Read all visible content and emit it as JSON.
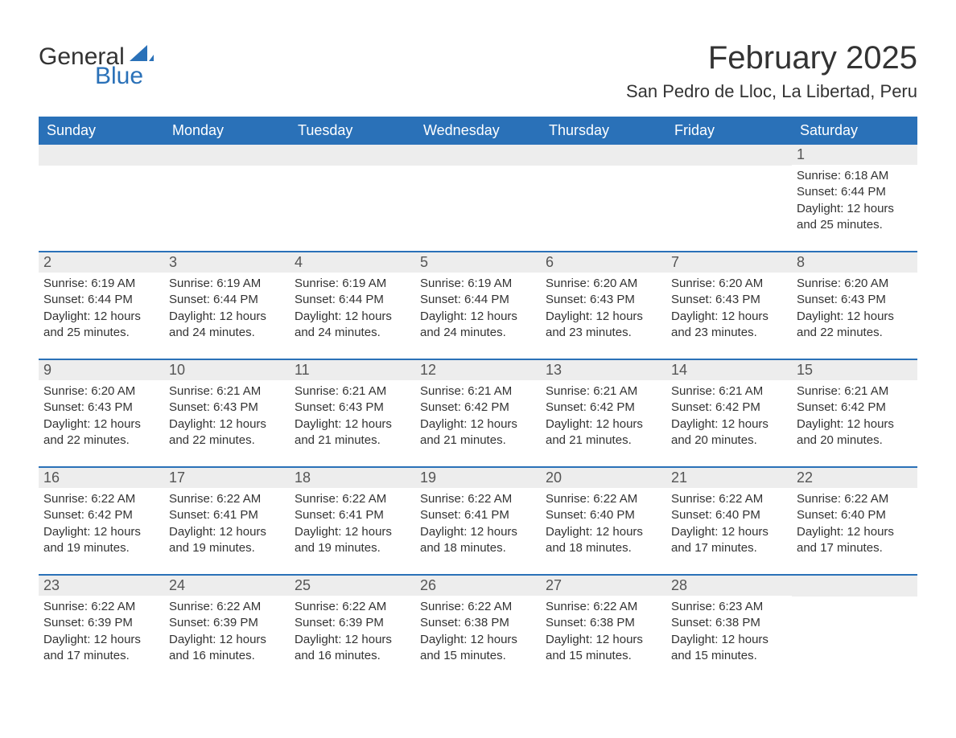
{
  "logo": {
    "word1": "General",
    "word2": "Blue"
  },
  "title": "February 2025",
  "location": "San Pedro de Lloc, La Libertad, Peru",
  "colors": {
    "header_bg": "#2a71b8",
    "header_text": "#ffffff",
    "daynum_bg": "#ededed",
    "daynum_text": "#555555",
    "body_text": "#333333",
    "page_bg": "#ffffff",
    "rule": "#2a71b8",
    "logo_blue": "#2a71b8"
  },
  "fonts": {
    "title_size_pt": 30,
    "location_size_pt": 16,
    "dow_size_pt": 14,
    "daynum_size_pt": 14,
    "body_size_pt": 11
  },
  "days_of_week": [
    "Sunday",
    "Monday",
    "Tuesday",
    "Wednesday",
    "Thursday",
    "Friday",
    "Saturday"
  ],
  "weeks": [
    [
      null,
      null,
      null,
      null,
      null,
      null,
      {
        "n": "1",
        "sunrise": "Sunrise: 6:18 AM",
        "sunset": "Sunset: 6:44 PM",
        "daylight": "Daylight: 12 hours and 25 minutes."
      }
    ],
    [
      {
        "n": "2",
        "sunrise": "Sunrise: 6:19 AM",
        "sunset": "Sunset: 6:44 PM",
        "daylight": "Daylight: 12 hours and 25 minutes."
      },
      {
        "n": "3",
        "sunrise": "Sunrise: 6:19 AM",
        "sunset": "Sunset: 6:44 PM",
        "daylight": "Daylight: 12 hours and 24 minutes."
      },
      {
        "n": "4",
        "sunrise": "Sunrise: 6:19 AM",
        "sunset": "Sunset: 6:44 PM",
        "daylight": "Daylight: 12 hours and 24 minutes."
      },
      {
        "n": "5",
        "sunrise": "Sunrise: 6:19 AM",
        "sunset": "Sunset: 6:44 PM",
        "daylight": "Daylight: 12 hours and 24 minutes."
      },
      {
        "n": "6",
        "sunrise": "Sunrise: 6:20 AM",
        "sunset": "Sunset: 6:43 PM",
        "daylight": "Daylight: 12 hours and 23 minutes."
      },
      {
        "n": "7",
        "sunrise": "Sunrise: 6:20 AM",
        "sunset": "Sunset: 6:43 PM",
        "daylight": "Daylight: 12 hours and 23 minutes."
      },
      {
        "n": "8",
        "sunrise": "Sunrise: 6:20 AM",
        "sunset": "Sunset: 6:43 PM",
        "daylight": "Daylight: 12 hours and 22 minutes."
      }
    ],
    [
      {
        "n": "9",
        "sunrise": "Sunrise: 6:20 AM",
        "sunset": "Sunset: 6:43 PM",
        "daylight": "Daylight: 12 hours and 22 minutes."
      },
      {
        "n": "10",
        "sunrise": "Sunrise: 6:21 AM",
        "sunset": "Sunset: 6:43 PM",
        "daylight": "Daylight: 12 hours and 22 minutes."
      },
      {
        "n": "11",
        "sunrise": "Sunrise: 6:21 AM",
        "sunset": "Sunset: 6:43 PM",
        "daylight": "Daylight: 12 hours and 21 minutes."
      },
      {
        "n": "12",
        "sunrise": "Sunrise: 6:21 AM",
        "sunset": "Sunset: 6:42 PM",
        "daylight": "Daylight: 12 hours and 21 minutes."
      },
      {
        "n": "13",
        "sunrise": "Sunrise: 6:21 AM",
        "sunset": "Sunset: 6:42 PM",
        "daylight": "Daylight: 12 hours and 21 minutes."
      },
      {
        "n": "14",
        "sunrise": "Sunrise: 6:21 AM",
        "sunset": "Sunset: 6:42 PM",
        "daylight": "Daylight: 12 hours and 20 minutes."
      },
      {
        "n": "15",
        "sunrise": "Sunrise: 6:21 AM",
        "sunset": "Sunset: 6:42 PM",
        "daylight": "Daylight: 12 hours and 20 minutes."
      }
    ],
    [
      {
        "n": "16",
        "sunrise": "Sunrise: 6:22 AM",
        "sunset": "Sunset: 6:42 PM",
        "daylight": "Daylight: 12 hours and 19 minutes."
      },
      {
        "n": "17",
        "sunrise": "Sunrise: 6:22 AM",
        "sunset": "Sunset: 6:41 PM",
        "daylight": "Daylight: 12 hours and 19 minutes."
      },
      {
        "n": "18",
        "sunrise": "Sunrise: 6:22 AM",
        "sunset": "Sunset: 6:41 PM",
        "daylight": "Daylight: 12 hours and 19 minutes."
      },
      {
        "n": "19",
        "sunrise": "Sunrise: 6:22 AM",
        "sunset": "Sunset: 6:41 PM",
        "daylight": "Daylight: 12 hours and 18 minutes."
      },
      {
        "n": "20",
        "sunrise": "Sunrise: 6:22 AM",
        "sunset": "Sunset: 6:40 PM",
        "daylight": "Daylight: 12 hours and 18 minutes."
      },
      {
        "n": "21",
        "sunrise": "Sunrise: 6:22 AM",
        "sunset": "Sunset: 6:40 PM",
        "daylight": "Daylight: 12 hours and 17 minutes."
      },
      {
        "n": "22",
        "sunrise": "Sunrise: 6:22 AM",
        "sunset": "Sunset: 6:40 PM",
        "daylight": "Daylight: 12 hours and 17 minutes."
      }
    ],
    [
      {
        "n": "23",
        "sunrise": "Sunrise: 6:22 AM",
        "sunset": "Sunset: 6:39 PM",
        "daylight": "Daylight: 12 hours and 17 minutes."
      },
      {
        "n": "24",
        "sunrise": "Sunrise: 6:22 AM",
        "sunset": "Sunset: 6:39 PM",
        "daylight": "Daylight: 12 hours and 16 minutes."
      },
      {
        "n": "25",
        "sunrise": "Sunrise: 6:22 AM",
        "sunset": "Sunset: 6:39 PM",
        "daylight": "Daylight: 12 hours and 16 minutes."
      },
      {
        "n": "26",
        "sunrise": "Sunrise: 6:22 AM",
        "sunset": "Sunset: 6:38 PM",
        "daylight": "Daylight: 12 hours and 15 minutes."
      },
      {
        "n": "27",
        "sunrise": "Sunrise: 6:22 AM",
        "sunset": "Sunset: 6:38 PM",
        "daylight": "Daylight: 12 hours and 15 minutes."
      },
      {
        "n": "28",
        "sunrise": "Sunrise: 6:23 AM",
        "sunset": "Sunset: 6:38 PM",
        "daylight": "Daylight: 12 hours and 15 minutes."
      },
      null
    ]
  ]
}
